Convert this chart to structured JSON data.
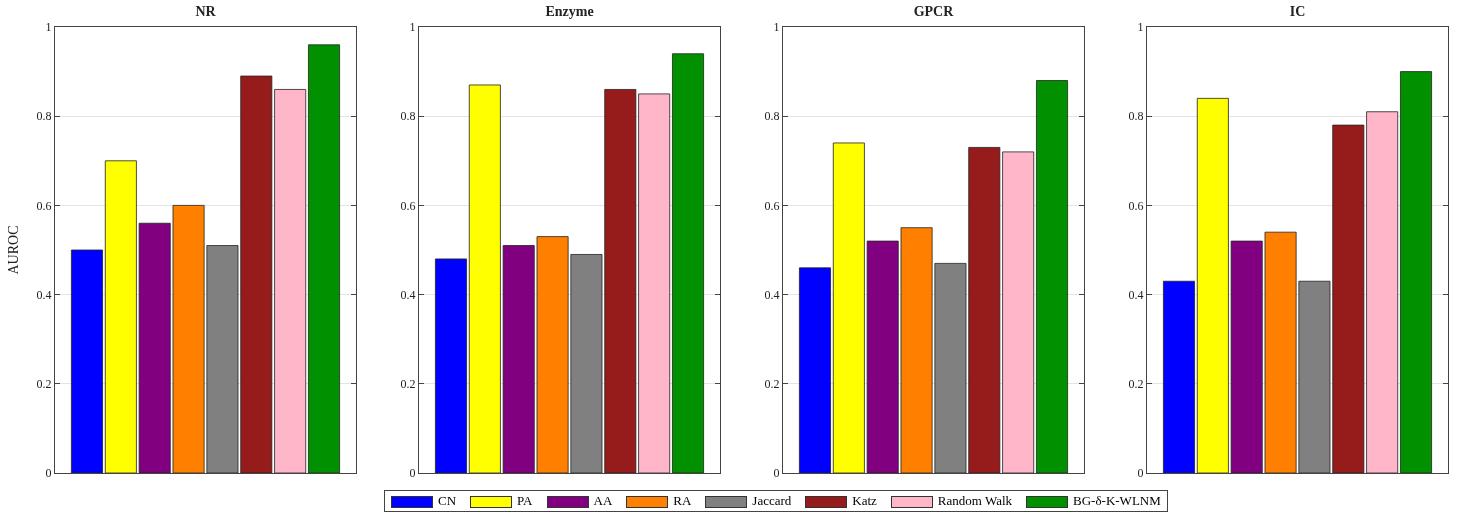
{
  "chart_data": [
    {
      "type": "bar",
      "title": "NR",
      "ylabel": "AUROC",
      "categories": [
        null
      ],
      "ylim": [
        0,
        1
      ],
      "yticks": [
        0,
        0.2,
        0.4,
        0.6,
        0.8,
        1
      ],
      "grid": "y",
      "tick_labels": "y",
      "legend": "bottom",
      "series": [
        {
          "name": "CN",
          "color": "#0000ff",
          "values": [
            0.5
          ]
        },
        {
          "name": "PA",
          "color": "#ffff00",
          "values": [
            0.7
          ]
        },
        {
          "name": "AA",
          "color": "#800080",
          "values": [
            0.56
          ]
        },
        {
          "name": "RA",
          "color": "#ff8000",
          "values": [
            0.6
          ]
        },
        {
          "name": "Jaccard",
          "color": "#808080",
          "values": [
            0.51
          ]
        },
        {
          "name": "Katz",
          "color": "#961c1c",
          "values": [
            0.89
          ]
        },
        {
          "name": "Random Walk",
          "color": "#ffb6c8",
          "values": [
            0.86
          ]
        },
        {
          "name": "BG-δ-K-WLNM",
          "color": "#009000",
          "values": [
            0.96
          ]
        }
      ]
    },
    {
      "type": "bar",
      "title": "Enzyme",
      "categories": [
        null
      ],
      "ylim": [
        0,
        1
      ],
      "yticks": [
        0,
        0.2,
        0.4,
        0.6,
        0.8,
        1
      ],
      "grid": "y",
      "tick_labels": "y",
      "series": [
        {
          "color": "#0000ff",
          "values": [
            0.48
          ]
        },
        {
          "color": "#ffff00",
          "values": [
            0.87
          ]
        },
        {
          "color": "#800080",
          "values": [
            0.51
          ]
        },
        {
          "color": "#ff8000",
          "values": [
            0.53
          ]
        },
        {
          "color": "#808080",
          "values": [
            0.49
          ]
        },
        {
          "color": "#961c1c",
          "values": [
            0.86
          ]
        },
        {
          "color": "#ffb6c8",
          "values": [
            0.85
          ]
        },
        {
          "color": "#009000",
          "values": [
            0.94
          ]
        }
      ]
    },
    {
      "type": "bar",
      "title": "GPCR",
      "categories": [
        null
      ],
      "ylim": [
        0,
        1
      ],
      "yticks": [
        0,
        0.2,
        0.4,
        0.6,
        0.8,
        1
      ],
      "grid": "y",
      "tick_labels": "y",
      "series": [
        {
          "color": "#0000ff",
          "values": [
            0.46
          ]
        },
        {
          "color": "#ffff00",
          "values": [
            0.74
          ]
        },
        {
          "color": "#800080",
          "values": [
            0.52
          ]
        },
        {
          "color": "#ff8000",
          "values": [
            0.55
          ]
        },
        {
          "color": "#808080",
          "values": [
            0.47
          ]
        },
        {
          "color": "#961c1c",
          "values": [
            0.73
          ]
        },
        {
          "color": "#ffb6c8",
          "values": [
            0.72
          ]
        },
        {
          "color": "#009000",
          "values": [
            0.88
          ]
        }
      ]
    },
    {
      "type": "bar",
      "title": "IC",
      "categories": [
        null
      ],
      "ylim": [
        0,
        1
      ],
      "yticks": [
        0,
        0.2,
        0.4,
        0.6,
        0.8,
        1
      ],
      "grid": "y",
      "tick_labels": "y",
      "series": [
        {
          "color": "#0000ff",
          "values": [
            0.43
          ]
        },
        {
          "color": "#ffff00",
          "values": [
            0.84
          ]
        },
        {
          "color": "#800080",
          "values": [
            0.52
          ]
        },
        {
          "color": "#ff8000",
          "values": [
            0.54
          ]
        },
        {
          "color": "#808080",
          "values": [
            0.43
          ]
        },
        {
          "color": "#961c1c",
          "values": [
            0.78
          ]
        },
        {
          "color": "#ffb6c8",
          "values": [
            0.81
          ]
        },
        {
          "color": "#009000",
          "values": [
            0.9
          ]
        }
      ]
    }
  ]
}
